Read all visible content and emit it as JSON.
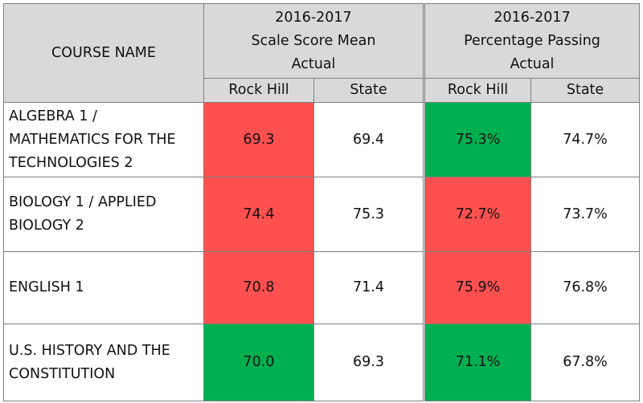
{
  "header": {
    "course_col": "COURSE NAME",
    "group1": {
      "line1": "2016-2017",
      "line2": "Scale Score Mean",
      "line3": "Actual"
    },
    "group2": {
      "line1": "2016-2017",
      "line2": "Percentage Passing",
      "line3": "Actual"
    },
    "sub": {
      "rock_hill": "Rock Hill",
      "state": "State"
    }
  },
  "rows": [
    {
      "course_lines": [
        "ALGEBRA 1 /",
        "MATHEMATICS FOR THE",
        "TECHNOLOGIES 2"
      ],
      "ssm_rock_hill": "69.3",
      "ssm_state": "69.4",
      "pp_rock_hill": "75.3%",
      "pp_state": "74.7%",
      "ssm_color": "#ff5050",
      "pp_color": "#00b050"
    },
    {
      "course_lines": [
        "BIOLOGY 1 / APPLIED",
        "BIOLOGY 2"
      ],
      "ssm_rock_hill": "74.4",
      "ssm_state": "75.3",
      "pp_rock_hill": "72.7%",
      "pp_state": "73.7%",
      "ssm_color": "#ff5050",
      "pp_color": "#ff5050"
    },
    {
      "course_lines": [
        "ENGLISH 1"
      ],
      "ssm_rock_hill": "70.8",
      "ssm_state": "71.4",
      "pp_rock_hill": "75.9%",
      "pp_state": "76.8%",
      "ssm_color": "#ff5050",
      "pp_color": "#ff5050"
    },
    {
      "course_lines": [
        "U.S. HISTORY AND THE",
        "CONSTITUTION"
      ],
      "ssm_rock_hill": "70.0",
      "ssm_state": "69.3",
      "pp_rock_hill": "71.1%",
      "pp_state": "67.8%",
      "ssm_color": "#00b050",
      "pp_color": "#00b050"
    }
  ]
}
